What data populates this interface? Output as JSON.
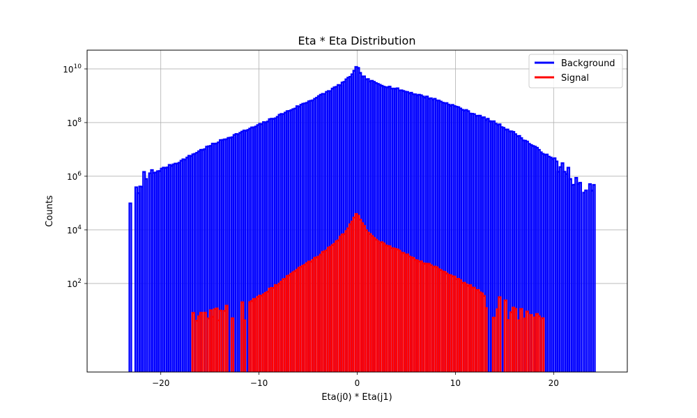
{
  "chart_data": {
    "type": "histogram",
    "title": "Eta * Eta Distribution",
    "xlabel": "Eta(j0) * Eta(j1)",
    "ylabel": "Counts",
    "xlim": [
      -27.5,
      27.5
    ],
    "ylim_log10": [
      -1.3,
      10.7
    ],
    "yscale": "log",
    "grid": true,
    "legend_position": "top-right",
    "x_ticks": [
      -20,
      -10,
      0,
      10,
      20
    ],
    "x_tick_labels": [
      "−20",
      "−10",
      "0",
      "10",
      "20"
    ],
    "y_ticks_log10": [
      2,
      4,
      6,
      8,
      10
    ],
    "y_tick_bases": [
      "10",
      "10",
      "10",
      "10",
      "10"
    ],
    "y_tick_exponents": [
      "2",
      "4",
      "6",
      "8",
      "10"
    ],
    "series": [
      {
        "name": "Background",
        "color": "#0000ff",
        "x_range": [
          -23.2,
          24.2
        ],
        "bin_width": 0.2,
        "log10_profile": [
          [
            -23.2,
            5.05
          ],
          [
            -22.0,
            5.8
          ],
          [
            -21.0,
            6.05
          ],
          [
            -20.0,
            6.25
          ],
          [
            -18.0,
            6.55
          ],
          [
            -16.0,
            6.95
          ],
          [
            -14.0,
            7.3
          ],
          [
            -12.0,
            7.6
          ],
          [
            -10.0,
            7.9
          ],
          [
            -8.0,
            8.25
          ],
          [
            -6.0,
            8.6
          ],
          [
            -4.0,
            8.95
          ],
          [
            -2.0,
            9.35
          ],
          [
            -1.0,
            9.6
          ],
          [
            -0.2,
            9.95
          ],
          [
            0.0,
            10.15
          ],
          [
            0.2,
            9.85
          ],
          [
            1.0,
            9.6
          ],
          [
            2.0,
            9.45
          ],
          [
            4.0,
            9.25
          ],
          [
            6.0,
            9.05
          ],
          [
            8.0,
            8.85
          ],
          [
            10.0,
            8.6
          ],
          [
            12.0,
            8.3
          ],
          [
            14.0,
            8.0
          ],
          [
            16.0,
            7.6
          ],
          [
            18.0,
            7.1
          ],
          [
            20.0,
            6.6
          ],
          [
            21.0,
            6.2
          ],
          [
            22.0,
            5.9
          ],
          [
            22.6,
            5.55
          ],
          [
            24.2,
            5.55
          ]
        ],
        "zero_bin_ranges": [
          [
            -22.9,
            -22.5
          ],
          [
            -21.3,
            -21.1
          ],
          [
            22.9,
            23.1
          ],
          [
            23.4,
            23.6
          ]
        ],
        "jagged_ranges": [
          [
            -23.2,
            -20.5
          ],
          [
            20.0,
            24.2
          ]
        ]
      },
      {
        "name": "Signal",
        "color": "#ff0000",
        "x_range": [
          -17.0,
          20.0
        ],
        "bin_width": 0.2,
        "log10_profile": [
          [
            -17.0,
            0.65
          ],
          [
            -14.0,
            0.8
          ],
          [
            -12.0,
            1.05
          ],
          [
            -10.0,
            1.5
          ],
          [
            -8.0,
            2.0
          ],
          [
            -6.0,
            2.55
          ],
          [
            -4.0,
            3.0
          ],
          [
            -2.0,
            3.6
          ],
          [
            -1.0,
            4.0
          ],
          [
            -0.2,
            4.5
          ],
          [
            0.0,
            4.7
          ],
          [
            0.2,
            4.4
          ],
          [
            1.0,
            3.95
          ],
          [
            2.0,
            3.6
          ],
          [
            4.0,
            3.25
          ],
          [
            6.0,
            2.9
          ],
          [
            8.0,
            2.6
          ],
          [
            10.0,
            2.2
          ],
          [
            12.0,
            1.8
          ],
          [
            14.0,
            1.3
          ],
          [
            16.0,
            0.95
          ],
          [
            18.0,
            0.7
          ],
          [
            20.0,
            0.6
          ]
        ],
        "low_count_floor_log10": 0.6,
        "noisy_ranges": [
          [
            -17.0,
            -11.0
          ],
          [
            13.0,
            20.0
          ]
        ]
      }
    ]
  }
}
